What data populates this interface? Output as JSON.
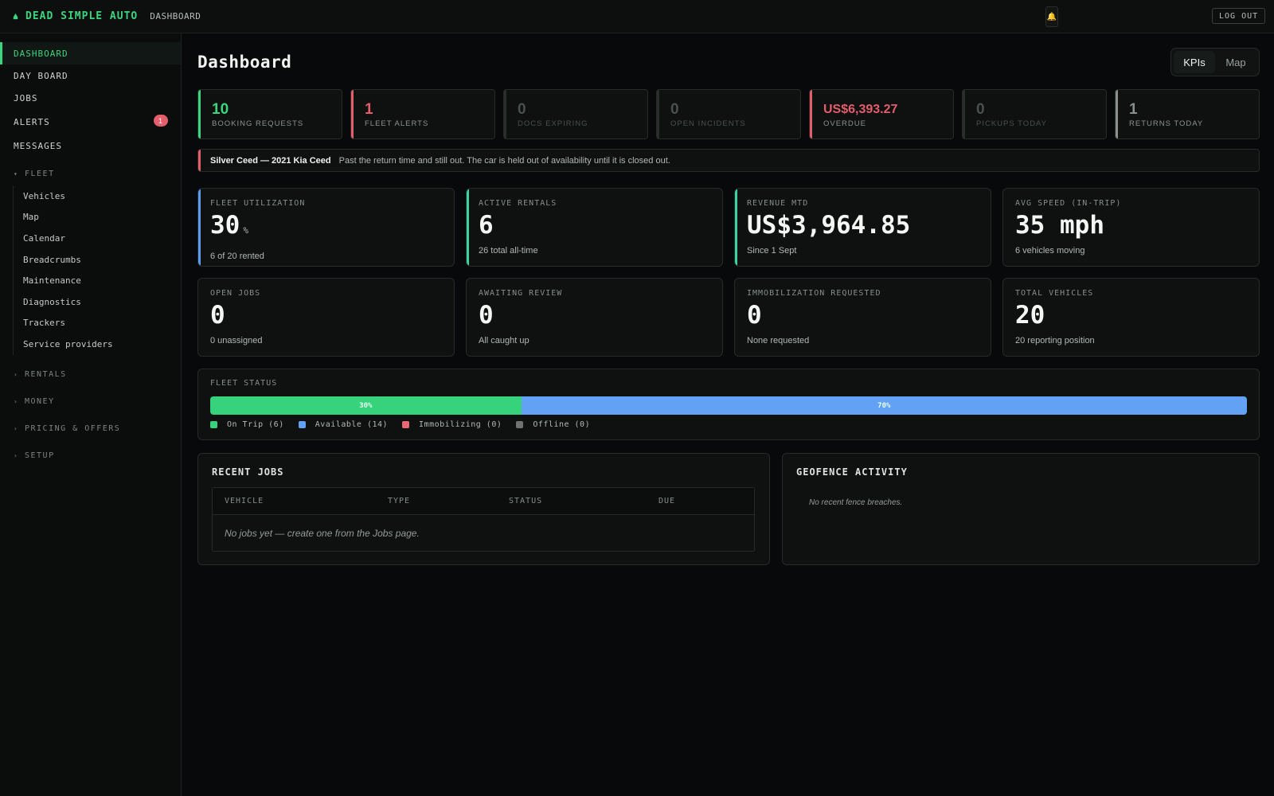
{
  "app": {
    "brand": "DEAD SIMPLE AUTO",
    "breadcrumb": "DASHBOARD",
    "logout_label": "LOG OUT",
    "bell_icon": "bell-icon"
  },
  "sidebar": {
    "items": [
      {
        "label": "DASHBOARD",
        "active": true
      },
      {
        "label": "DAY BOARD"
      },
      {
        "label": "JOBS"
      },
      {
        "label": "ALERTS",
        "badge": "1"
      },
      {
        "label": "MESSAGES"
      }
    ],
    "fleet_group": {
      "label": "FLEET",
      "items": [
        "Vehicles",
        "Map",
        "Calendar",
        "Breadcrumbs",
        "Maintenance",
        "Diagnostics",
        "Trackers",
        "Service providers"
      ]
    },
    "collapsed_groups": [
      "RENTALS",
      "MONEY",
      "PRICING & OFFERS",
      "SETUP"
    ]
  },
  "page": {
    "title": "Dashboard",
    "view_toggle": [
      "KPIs",
      "Map"
    ],
    "active_view": "KPIs"
  },
  "kpis": [
    {
      "value": "10",
      "label": "BOOKING REQUESTS",
      "color": "#3bd47f",
      "dim": false
    },
    {
      "value": "1",
      "label": "FLEET ALERTS",
      "color": "#e35d6a",
      "dim": false
    },
    {
      "value": "0",
      "label": "DOCS EXPIRING",
      "color": "#2a2f2c",
      "dim": true
    },
    {
      "value": "0",
      "label": "OPEN INCIDENTS",
      "color": "#2a2f2c",
      "dim": true
    },
    {
      "value": "US$6,393.27",
      "label": "OVERDUE",
      "color": "#e35d6a",
      "dim": false
    },
    {
      "value": "0",
      "label": "PICKUPS TODAY",
      "color": "#2a2f2c",
      "dim": true
    },
    {
      "value": "1",
      "label": "RETURNS TODAY",
      "color": "#8a908c",
      "dim": false
    }
  ],
  "alert": {
    "vehicle": "Silver Ceed — 2021 Kia Ceed",
    "message": "Past the return time and still out. The car is held out of availability until it is closed out."
  },
  "stats": [
    {
      "label": "FLEET UTILIZATION",
      "value": "30",
      "unit": "%",
      "sub": "6 of 20 rented",
      "accent": "#5b9cf0"
    },
    {
      "label": "ACTIVE RENTALS",
      "value": "6",
      "unit": "",
      "sub": "26 total all-time",
      "accent": "#3bd4a0"
    },
    {
      "label": "REVENUE MTD",
      "value": "US$3,964.85",
      "unit": "",
      "sub": "Since 1 Sept",
      "accent": "#3bd4a0"
    },
    {
      "label": "AVG SPEED (IN-TRIP)",
      "value": "35 mph",
      "unit": "",
      "sub": "6 vehicles moving",
      "accent": ""
    },
    {
      "label": "OPEN JOBS",
      "value": "0",
      "unit": "",
      "sub": "0 unassigned",
      "accent": ""
    },
    {
      "label": "AWAITING REVIEW",
      "value": "0",
      "unit": "",
      "sub": "All caught up",
      "accent": ""
    },
    {
      "label": "IMMOBILIZATION REQUESTED",
      "value": "0",
      "unit": "",
      "sub": "None requested",
      "accent": ""
    },
    {
      "label": "TOTAL VEHICLES",
      "value": "20",
      "unit": "",
      "sub": "20 reporting position",
      "accent": ""
    }
  ],
  "fleet_status": {
    "label": "FLEET STATUS",
    "segments": [
      {
        "name": "On Trip",
        "count": 6,
        "fraction": 0.3,
        "text": "30%",
        "color": "#36d27c"
      },
      {
        "name": "Available",
        "count": 14,
        "fraction": 0.7,
        "text": "70%",
        "color": "#62a1f3"
      },
      {
        "name": "Immobilizing",
        "count": 0,
        "fraction": 0,
        "text": "",
        "color": "#e96876"
      },
      {
        "name": "Offline",
        "count": 0,
        "fraction": 0,
        "text": "",
        "color": "#6e7370"
      }
    ],
    "legend": [
      "On Trip (6)",
      "Available (14)",
      "Immobilizing (0)",
      "Offline (0)"
    ]
  },
  "recent_jobs": {
    "title": "RECENT JOBS",
    "columns": [
      "VEHICLE",
      "TYPE",
      "STATUS",
      "DUE"
    ],
    "empty_text": "No jobs yet — create one from the Jobs page."
  },
  "geofence": {
    "title": "GEOFENCE ACTIVITY",
    "empty_text": "No recent fence breaches."
  }
}
